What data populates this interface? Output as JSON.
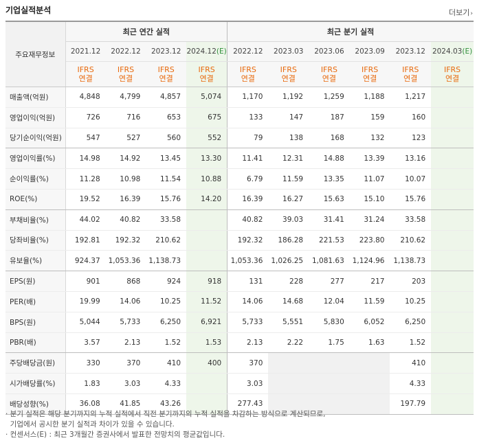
{
  "title": "기업실적분석",
  "more": "더보기",
  "more_icon": "chevron-right-icon",
  "header": {
    "label": "주요재무정보",
    "annual": "최근 연간 실적",
    "quarterly": "최근 분기 실적",
    "annual_years": [
      "2021.12",
      "2022.12",
      "2023.12",
      "2024.12"
    ],
    "annual_est_suffix": "(E)",
    "quarter_years": [
      "2022.12",
      "2023.03",
      "2023.06",
      "2023.09",
      "2023.12",
      "2024.03"
    ],
    "quarter_est_suffix": "(E)",
    "ifrs": "IFRS",
    "basis": "연결"
  },
  "rows": [
    {
      "label": "매출액(억원)",
      "a": [
        "4,848",
        "4,799",
        "4,857",
        "5,074"
      ],
      "q": [
        "1,170",
        "1,192",
        "1,259",
        "1,188",
        "1,217",
        ""
      ]
    },
    {
      "label": "영업이익(억원)",
      "a": [
        "726",
        "716",
        "653",
        "675"
      ],
      "q": [
        "133",
        "147",
        "187",
        "159",
        "160",
        ""
      ]
    },
    {
      "label": "당기순이익(억원)",
      "a": [
        "547",
        "527",
        "560",
        "552"
      ],
      "q": [
        "79",
        "138",
        "168",
        "132",
        "123",
        ""
      ]
    },
    {
      "label": "영업이익률(%)",
      "a": [
        "14.98",
        "14.92",
        "13.45",
        "13.30"
      ],
      "q": [
        "11.41",
        "12.31",
        "14.88",
        "13.39",
        "13.16",
        ""
      ]
    },
    {
      "label": "순이익률(%)",
      "a": [
        "11.28",
        "10.98",
        "11.54",
        "10.88"
      ],
      "q": [
        "6.79",
        "11.59",
        "13.35",
        "11.07",
        "10.07",
        ""
      ]
    },
    {
      "label": "ROE(%)",
      "a": [
        "19.52",
        "16.39",
        "15.76",
        "14.20"
      ],
      "q": [
        "16.39",
        "16.27",
        "15.63",
        "15.10",
        "15.76",
        ""
      ]
    },
    {
      "label": "부채비율(%)",
      "a": [
        "44.02",
        "40.82",
        "33.58",
        ""
      ],
      "q": [
        "40.82",
        "39.03",
        "31.41",
        "31.24",
        "33.58",
        ""
      ]
    },
    {
      "label": "당좌비율(%)",
      "a": [
        "192.81",
        "192.32",
        "210.62",
        ""
      ],
      "q": [
        "192.32",
        "186.28",
        "221.53",
        "223.80",
        "210.62",
        ""
      ]
    },
    {
      "label": "유보율(%)",
      "a": [
        "924.37",
        "1,053.36",
        "1,138.73",
        ""
      ],
      "q": [
        "1,053.36",
        "1,026.25",
        "1,081.63",
        "1,124.96",
        "1,138.73",
        ""
      ]
    },
    {
      "label": "EPS(원)",
      "a": [
        "901",
        "868",
        "924",
        "918"
      ],
      "q": [
        "131",
        "228",
        "277",
        "217",
        "203",
        ""
      ]
    },
    {
      "label": "PER(배)",
      "a": [
        "19.99",
        "14.06",
        "10.25",
        "11.52"
      ],
      "q": [
        "14.06",
        "14.68",
        "12.04",
        "11.59",
        "10.25",
        ""
      ]
    },
    {
      "label": "BPS(원)",
      "a": [
        "5,044",
        "5,733",
        "6,250",
        "6,921"
      ],
      "q": [
        "5,733",
        "5,551",
        "5,830",
        "6,052",
        "6,250",
        ""
      ]
    },
    {
      "label": "PBR(배)",
      "a": [
        "3.57",
        "2.13",
        "1.52",
        "1.53"
      ],
      "q": [
        "2.13",
        "2.22",
        "1.75",
        "1.63",
        "1.52",
        ""
      ]
    },
    {
      "label": "주당배당금(원)",
      "a": [
        "330",
        "370",
        "410",
        "400"
      ],
      "q": [
        "370",
        "",
        "",
        "",
        "410",
        ""
      ]
    },
    {
      "label": "시가배당률(%)",
      "a": [
        "1.83",
        "3.03",
        "4.33",
        ""
      ],
      "q": [
        "3.03",
        "",
        "",
        "",
        "4.33",
        ""
      ]
    },
    {
      "label": "배당성향(%)",
      "a": [
        "36.08",
        "41.85",
        "43.26",
        ""
      ],
      "q": [
        "277.43",
        "",
        "",
        "",
        "197.79",
        ""
      ]
    }
  ],
  "notes": [
    "· 분기 실적은 해당 분기까지의 누적 실적에서 직전 분기까지의 누적 실적을 차감하는 방식으로 계산되므로,",
    "  기업에서 공시한 분기 실적과 차이가 있을 수 있습니다.",
    "· 컨센서스(E) : 최근 3개월간 증권사에서 발표한 전망치의 평균값입니다."
  ]
}
